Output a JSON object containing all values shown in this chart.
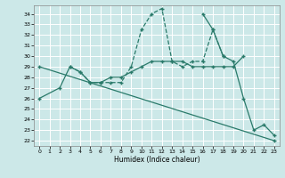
{
  "xlabel": "Humidex (Indice chaleur)",
  "bg_color": "#cce8e8",
  "grid_color": "#ffffff",
  "line_color": "#2a7a6a",
  "xlim": [
    -0.5,
    23.5
  ],
  "ylim": [
    21.5,
    34.8
  ],
  "yticks": [
    22,
    23,
    24,
    25,
    26,
    27,
    28,
    29,
    30,
    31,
    32,
    33,
    34
  ],
  "xticks": [
    0,
    1,
    2,
    3,
    4,
    5,
    6,
    7,
    8,
    9,
    10,
    11,
    12,
    13,
    14,
    15,
    16,
    17,
    18,
    19,
    20,
    21,
    22,
    23
  ],
  "line1_solid": {
    "x": [
      0,
      2,
      3,
      4,
      5,
      6,
      7,
      8,
      9,
      10,
      11,
      12,
      13,
      14,
      15,
      16,
      17,
      18,
      19,
      20
    ],
    "y": [
      26,
      27,
      29,
      28.5,
      27.5,
      27.5,
      28,
      28,
      28.5,
      29,
      29.5,
      29.5,
      29.5,
      29.5,
      29,
      29,
      29,
      29,
      29,
      30
    ]
  },
  "line2_dashed": {
    "x": [
      3,
      4,
      5,
      6,
      7,
      8,
      9,
      10,
      11,
      12,
      13,
      14,
      15,
      16,
      17,
      18
    ],
    "y": [
      29,
      28.5,
      27.5,
      27.5,
      27.5,
      27.5,
      29,
      32.5,
      34,
      34.5,
      29.5,
      29,
      29.5,
      29.5,
      32.5,
      30
    ]
  },
  "line3_diagonal": {
    "x": [
      0,
      23
    ],
    "y": [
      29,
      22
    ]
  },
  "line4_right": {
    "x": [
      16,
      17,
      18,
      19,
      20,
      21,
      22,
      23
    ],
    "y": [
      34,
      32.5,
      30,
      29.5,
      26,
      23,
      23.5,
      22.5
    ]
  }
}
